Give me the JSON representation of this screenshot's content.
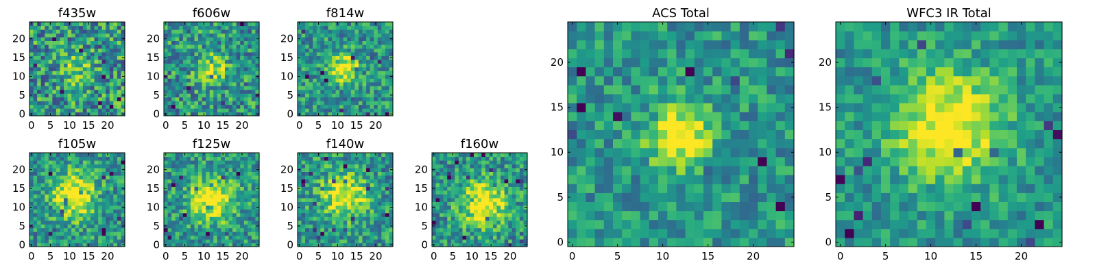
{
  "figure": {
    "colormap": "viridis",
    "frame_color": "#000000"
  },
  "chart_data": [
    {
      "type": "heatmap",
      "title": "f435w",
      "xlim": [
        0,
        24
      ],
      "ylim": [
        0,
        24
      ],
      "xticks": [
        0,
        5,
        10,
        15,
        20
      ],
      "yticks": [
        0,
        5,
        10,
        15,
        20
      ],
      "grid": "25x25",
      "pattern": "noise",
      "center": [
        12,
        12
      ],
      "peak": 0.25,
      "noise": 0.4
    },
    {
      "type": "heatmap",
      "title": "f606w",
      "xlim": [
        0,
        24
      ],
      "ylim": [
        0,
        24
      ],
      "xticks": [
        0,
        5,
        10,
        15,
        20
      ],
      "yticks": [
        0,
        5,
        10,
        15,
        20
      ],
      "grid": "25x25",
      "pattern": "faint-central-source",
      "center": [
        12,
        12
      ],
      "peak": 0.45,
      "noise": 0.35
    },
    {
      "type": "heatmap",
      "title": "f814w",
      "xlim": [
        0,
        24
      ],
      "ylim": [
        0,
        24
      ],
      "xticks": [
        0,
        5,
        10,
        15,
        20
      ],
      "yticks": [
        0,
        5,
        10,
        15,
        20
      ],
      "grid": "25x25",
      "pattern": "central-source",
      "center": [
        12,
        12
      ],
      "peak": 0.55,
      "noise": 0.3
    },
    {
      "type": "heatmap",
      "title": "f105w",
      "xlim": [
        0,
        24
      ],
      "ylim": [
        0,
        24
      ],
      "xticks": [
        0,
        5,
        10,
        15,
        20
      ],
      "yticks": [
        0,
        5,
        10,
        15,
        20
      ],
      "grid": "25x25",
      "pattern": "extended-source",
      "center": [
        11,
        13
      ],
      "peak": 0.55,
      "noise": 0.3
    },
    {
      "type": "heatmap",
      "title": "f125w",
      "xlim": [
        0,
        24
      ],
      "ylim": [
        0,
        24
      ],
      "xticks": [
        0,
        5,
        10,
        15,
        20
      ],
      "yticks": [
        0,
        5,
        10,
        15,
        20
      ],
      "grid": "25x25",
      "pattern": "extended-source",
      "center": [
        12,
        12
      ],
      "peak": 0.5,
      "noise": 0.3
    },
    {
      "type": "heatmap",
      "title": "f140w",
      "xlim": [
        0,
        24
      ],
      "ylim": [
        0,
        24
      ],
      "xticks": [
        0,
        5,
        10,
        15,
        20
      ],
      "yticks": [
        0,
        5,
        10,
        15,
        20
      ],
      "grid": "25x25",
      "pattern": "extended-source",
      "center": [
        12,
        13
      ],
      "peak": 0.5,
      "noise": 0.32
    },
    {
      "type": "heatmap",
      "title": "f160w",
      "xlim": [
        0,
        24
      ],
      "ylim": [
        0,
        24
      ],
      "xticks": [
        0,
        5,
        10,
        15,
        20
      ],
      "yticks": [
        0,
        5,
        10,
        15,
        20
      ],
      "grid": "25x25",
      "pattern": "extended-source",
      "center": [
        13,
        11
      ],
      "peak": 0.55,
      "noise": 0.3
    },
    {
      "type": "heatmap",
      "title": "ACS Total",
      "xlim": [
        0,
        24
      ],
      "ylim": [
        0,
        24
      ],
      "xticks": [
        0,
        5,
        10,
        15,
        20
      ],
      "yticks": [
        0,
        5,
        10,
        15,
        20
      ],
      "grid": "25x25",
      "pattern": "central-source",
      "center": [
        12,
        12
      ],
      "peak": 0.55,
      "noise": 0.25
    },
    {
      "type": "heatmap",
      "title": "WFC3 IR Total",
      "xlim": [
        0,
        24
      ],
      "ylim": [
        0,
        24
      ],
      "xticks": [
        0,
        5,
        10,
        15,
        20
      ],
      "yticks": [
        0,
        5,
        10,
        15,
        20
      ],
      "grid": "25x25",
      "pattern": "extended-source",
      "center": [
        12,
        13
      ],
      "peak": 0.55,
      "noise": 0.22
    }
  ]
}
